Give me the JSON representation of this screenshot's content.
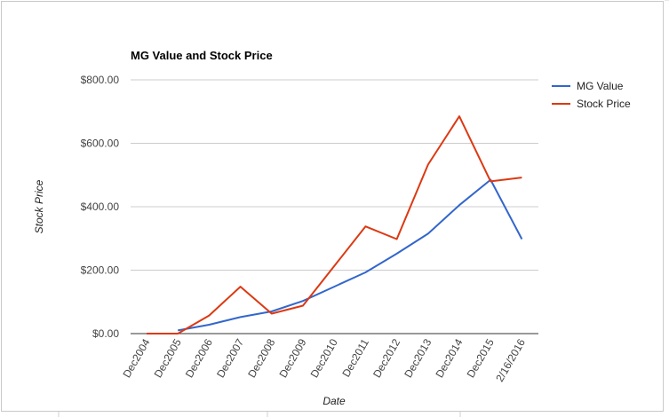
{
  "chart_data": {
    "type": "line",
    "title": "MG Value and Stock Price",
    "xlabel": "Date",
    "ylabel": "Stock Price",
    "categories": [
      "Dec2004",
      "Dec2005",
      "Dec2006",
      "Dec2007",
      "Dec2008",
      "Dec2009",
      "Dec2010",
      "Dec2011",
      "Dec2012",
      "Dec2013",
      "Dec2014",
      "Dec2015",
      "2/16/2016"
    ],
    "series": [
      {
        "name": "MG Value",
        "color": "#3366cc",
        "values": [
          null,
          10,
          28,
          52,
          70,
          103,
          148,
          193,
          252,
          315,
          405,
          485,
          298
        ]
      },
      {
        "name": "Stock Price",
        "color": "#dc3912",
        "values": [
          0,
          0,
          57,
          148,
          63,
          88,
          213,
          338,
          298,
          533,
          685,
          480,
          492
        ]
      }
    ],
    "yticks": [
      "$0.00",
      "$200.00",
      "$400.00",
      "$600.00",
      "$800.00"
    ],
    "ylim": [
      0,
      800
    ],
    "grid": true,
    "legend_position": "right"
  }
}
